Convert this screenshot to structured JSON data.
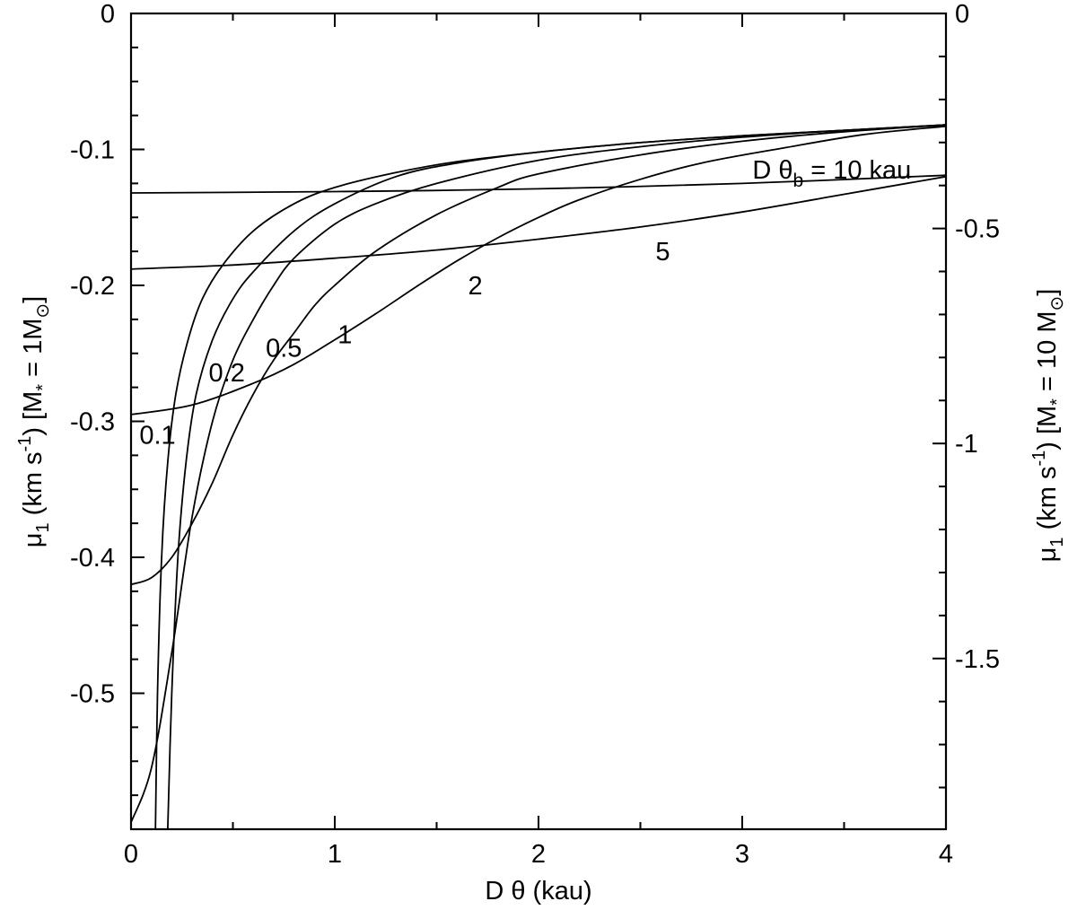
{
  "chart_data": {
    "type": "line",
    "xlabel": "D θ (kau)",
    "ylabel_left": {
      "mu": "μ",
      "mu_sub": "1",
      "unit": " (km s",
      "unit_sup": "-1",
      "mass": ") [M",
      "mass_sub": "*",
      "mass_tail": " = 1M",
      "sun": "⊙",
      "close": "]"
    },
    "ylabel_right": {
      "mu": "μ",
      "mu_sub": "1",
      "unit": " (km s",
      "unit_sup": "-1",
      "mass": ") [M",
      "mass_sub": "*",
      "mass_tail": " = 10 M",
      "sun": "⊙",
      "close": "]"
    },
    "xlim": [
      0,
      4
    ],
    "ylim": [
      -0.6,
      0
    ],
    "right_ylim": [
      -1.897,
      0
    ],
    "x_ticks": [
      0,
      1,
      2,
      3,
      4
    ],
    "x_tick_labels": [
      "0",
      "1",
      "2",
      "3",
      "4"
    ],
    "y_ticks": [
      0,
      -0.1,
      -0.2,
      -0.3,
      -0.4,
      -0.5
    ],
    "y_tick_labels": [
      "0",
      "-0.1",
      "-0.2",
      "-0.3",
      "-0.4",
      "-0.5"
    ],
    "right_y_ticks": [
      0,
      -0.5,
      -1,
      -1.5
    ],
    "right_y_tick_labels": [
      "0",
      "-0.5",
      "-1",
      "-1.5"
    ],
    "series": [
      {
        "label": "0.1",
        "x": [
          0.12,
          0.13,
          0.15,
          0.18,
          0.22,
          0.28,
          0.35,
          0.45,
          0.6,
          0.8,
          1.0,
          1.3,
          1.6,
          2.0,
          2.5,
          3.0,
          3.5,
          4.0
        ],
        "y": [
          -0.6,
          -0.5,
          -0.4,
          -0.33,
          -0.28,
          -0.24,
          -0.21,
          -0.185,
          -0.16,
          -0.14,
          -0.128,
          -0.117,
          -0.109,
          -0.102,
          -0.095,
          -0.09,
          -0.086,
          -0.082
        ]
      },
      {
        "label": "0.2",
        "x": [
          0.18,
          0.2,
          0.23,
          0.27,
          0.32,
          0.4,
          0.5,
          0.6,
          0.8,
          1.0,
          1.3,
          1.6,
          2.0,
          2.5,
          3.0,
          3.5,
          4.0
        ],
        "y": [
          -0.6,
          -0.5,
          -0.4,
          -0.33,
          -0.28,
          -0.24,
          -0.21,
          -0.19,
          -0.16,
          -0.14,
          -0.12,
          -0.11,
          -0.102,
          -0.095,
          -0.09,
          -0.086,
          -0.082
        ]
      },
      {
        "label": "0.5",
        "x": [
          0,
          0.1,
          0.2,
          0.3,
          0.4,
          0.5,
          0.6,
          0.7,
          0.8,
          1.0,
          1.2,
          1.5,
          2.0,
          2.5,
          3.0,
          3.5,
          4.0
        ],
        "y": [
          -0.595,
          -0.555,
          -0.47,
          -0.37,
          -0.3,
          -0.255,
          -0.225,
          -0.2,
          -0.18,
          -0.155,
          -0.14,
          -0.125,
          -0.108,
          -0.098,
          -0.091,
          -0.086,
          -0.082
        ]
      },
      {
        "label": "1",
        "x": [
          0,
          0.1,
          0.2,
          0.3,
          0.4,
          0.5,
          0.6,
          0.7,
          0.8,
          0.9,
          1.0,
          1.2,
          1.5,
          1.8,
          2.0,
          2.5,
          3.0,
          3.5,
          4.0
        ],
        "y": [
          -0.42,
          -0.415,
          -0.4,
          -0.375,
          -0.345,
          -0.31,
          -0.28,
          -0.255,
          -0.235,
          -0.215,
          -0.2,
          -0.175,
          -0.148,
          -0.128,
          -0.118,
          -0.104,
          -0.094,
          -0.087,
          -0.082
        ]
      },
      {
        "label": "2",
        "x": [
          0,
          0.3,
          0.6,
          0.8,
          1.0,
          1.2,
          1.4,
          1.6,
          1.8,
          2.0,
          2.2,
          2.5,
          2.8,
          3.2,
          3.6,
          4.0
        ],
        "y": [
          -0.295,
          -0.288,
          -0.272,
          -0.258,
          -0.24,
          -0.221,
          -0.201,
          -0.182,
          -0.165,
          -0.15,
          -0.137,
          -0.122,
          -0.11,
          -0.099,
          -0.089,
          -0.083
        ]
      },
      {
        "label": "5",
        "x": [
          0,
          0.5,
          1.0,
          1.5,
          2.0,
          2.5,
          3.0,
          3.5,
          4.0
        ],
        "y": [
          -0.188,
          -0.185,
          -0.18,
          -0.174,
          -0.166,
          -0.157,
          -0.146,
          -0.133,
          -0.12
        ]
      },
      {
        "label": "D θ_b = 10 kau",
        "x": [
          0,
          1.0,
          2.0,
          3.0,
          4.0
        ],
        "y": [
          -0.132,
          -0.131,
          -0.129,
          -0.125,
          -0.119
        ]
      }
    ],
    "curve_labels": [
      {
        "text": "0.1",
        "x": 0.13,
        "y": -0.31
      },
      {
        "text": "0.2",
        "x": 0.47,
        "y": -0.264
      },
      {
        "text": "0.5",
        "x": 0.75,
        "y": -0.246
      },
      {
        "text": "1",
        "x": 1.05,
        "y": -0.236
      },
      {
        "text": "2",
        "x": 1.69,
        "y": -0.2
      },
      {
        "text": "5",
        "x": 2.61,
        "y": -0.175
      }
    ],
    "top_label": {
      "main": "D θ",
      "sub": "b",
      "tail": " = 10 kau",
      "x": 3.05,
      "y": -0.115
    },
    "grid": false,
    "legend": "none"
  }
}
